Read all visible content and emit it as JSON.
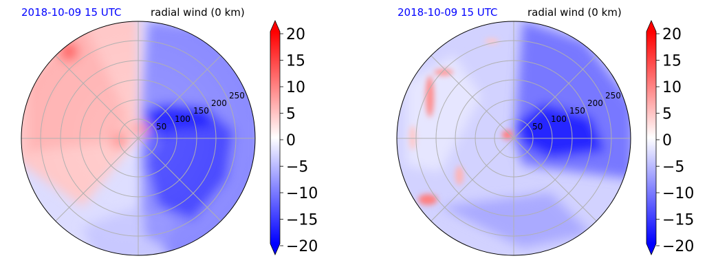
{
  "chart_data": [
    {
      "type": "polar-contour",
      "title_left": "2018-10-09 15 UTC",
      "title_right": "radial wind (0 km)",
      "radial_tick_labels": [
        "50",
        "100",
        "150",
        "200",
        "250"
      ],
      "colorbar": {
        "tick_labels": [
          "20",
          "15",
          "10",
          "5",
          "0",
          "−5",
          "−10",
          "−15",
          "−20"
        ],
        "range": [
          -20,
          20
        ],
        "extend": "both",
        "colormap": "bwr"
      },
      "features": [
        {
          "kind": "positive-sector",
          "center_deg": 148,
          "extent_deg": 140,
          "value": 4
        },
        {
          "kind": "negative-sector",
          "center_deg": -22,
          "extent_deg": 145,
          "value": -14
        },
        {
          "kind": "negative-core",
          "center_deg": 5,
          "value": -18
        }
      ]
    },
    {
      "type": "polar-contour",
      "title_left": "2018-10-09 15 UTC",
      "title_right": "radial wind (0 km)",
      "radial_tick_labels": [
        "50",
        "100",
        "150",
        "200",
        "250"
      ],
      "colorbar": {
        "tick_labels": [
          "20",
          "15",
          "10",
          "5",
          "0",
          "−5",
          "−10",
          "−15",
          "−20"
        ],
        "range": [
          -20,
          20
        ],
        "extend": "both",
        "colormap": "bwr"
      },
      "features": [
        {
          "kind": "negative-sector",
          "center_deg": 0,
          "extent_deg": 160,
          "value": -14
        },
        {
          "kind": "negative-core",
          "center_deg": 10,
          "value": -19
        },
        {
          "kind": "positive-streaks",
          "center_deg": 170,
          "value": 6
        }
      ]
    }
  ],
  "colors": {
    "positive": "#ff0000",
    "negative": "#0000ff",
    "neutral": "#ffffff",
    "title_left": "#0000ff",
    "grid": "#b0b0b0"
  }
}
